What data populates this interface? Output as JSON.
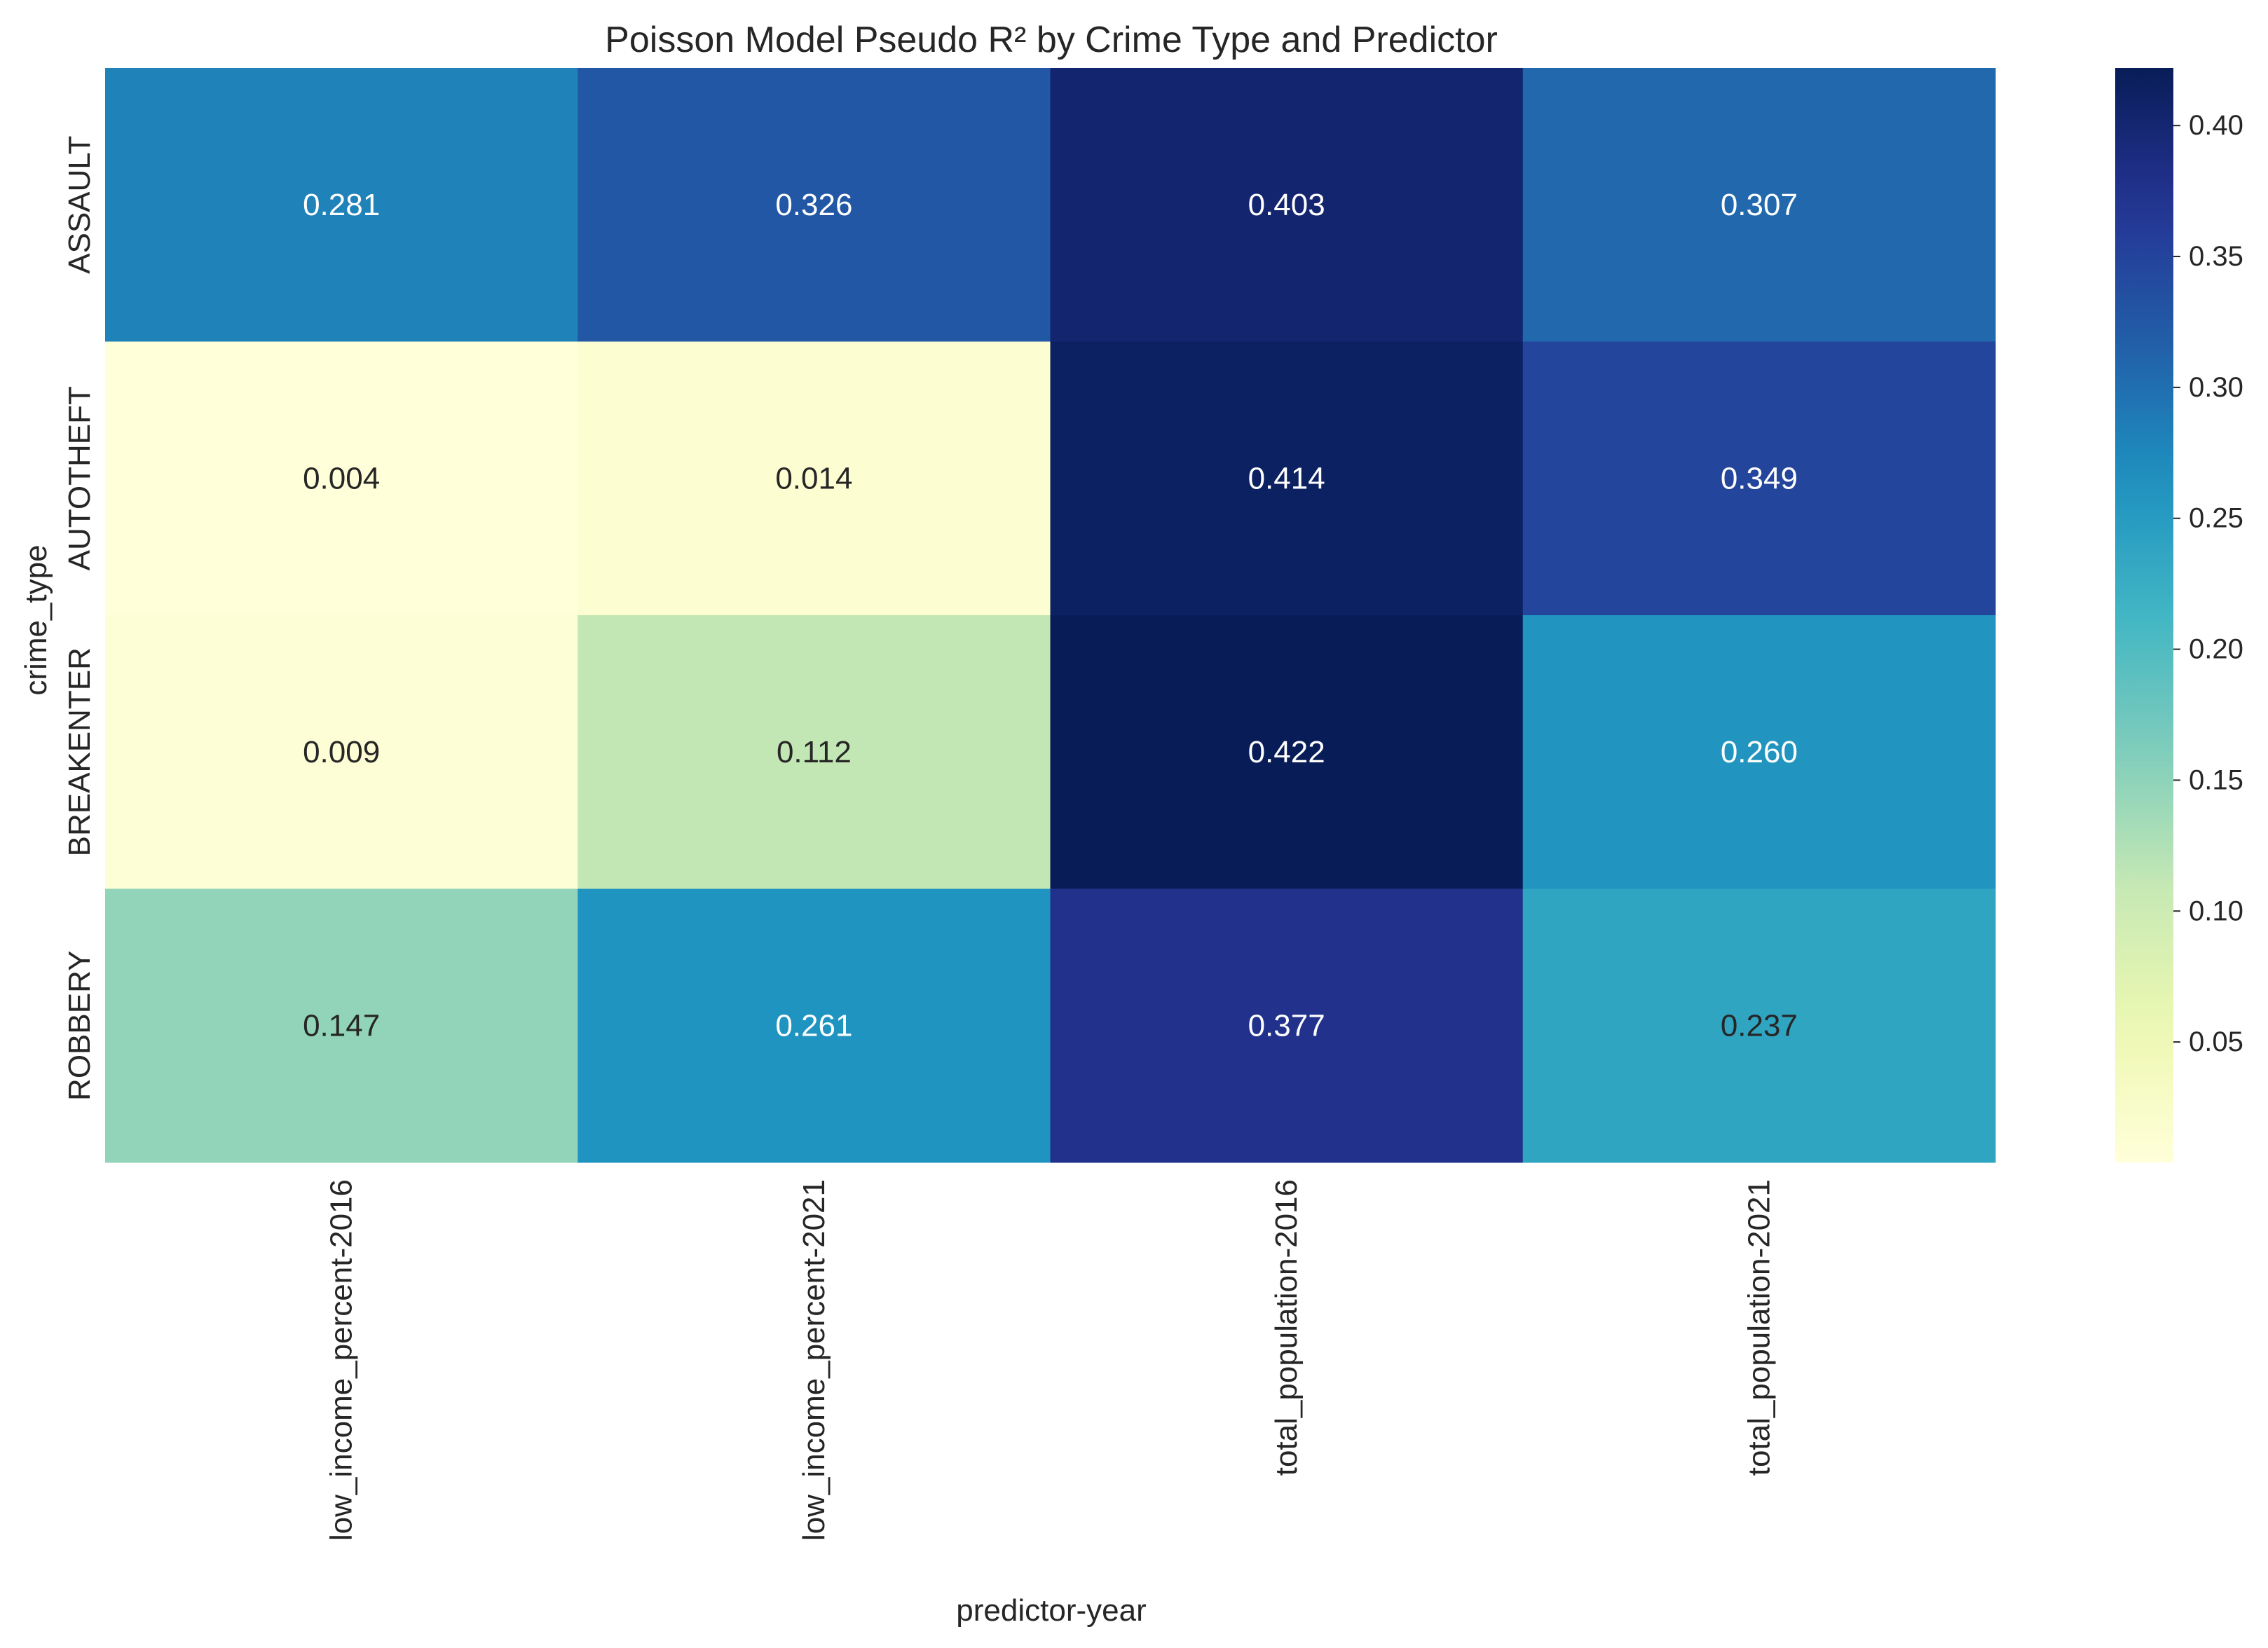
{
  "chart_data": {
    "type": "heatmap",
    "title": "Poisson Model Pseudo R² by Crime Type and Predictor",
    "xlabel": "predictor-year",
    "ylabel": "crime_type",
    "x_categories": [
      "low_income_percent-2016",
      "low_income_percent-2021",
      "total_population-2016",
      "total_population-2021"
    ],
    "y_categories": [
      "ASSAULT",
      "AUTOTHEFT",
      "BREAKENTER",
      "ROBBERY"
    ],
    "values": [
      [
        0.281,
        0.326,
        0.403,
        0.307
      ],
      [
        0.004,
        0.014,
        0.414,
        0.349
      ],
      [
        0.009,
        0.112,
        0.422,
        0.26
      ],
      [
        0.147,
        0.261,
        0.377,
        0.237
      ]
    ],
    "cell_labels": [
      [
        "0.281",
        "0.326",
        "0.403",
        "0.307"
      ],
      [
        "0.004",
        "0.014",
        "0.414",
        "0.349"
      ],
      [
        "0.009",
        "0.112",
        "0.422",
        "0.260"
      ],
      [
        "0.147",
        "0.261",
        "0.377",
        "0.237"
      ]
    ],
    "colormap": "YlGnBu",
    "colorbar": {
      "vmin": 0.004,
      "vmax": 0.422,
      "ticks": [
        0.05,
        0.1,
        0.15,
        0.2,
        0.25,
        0.3,
        0.35,
        0.4
      ],
      "tick_labels": [
        "0.05",
        "0.10",
        "0.15",
        "0.20",
        "0.25",
        "0.30",
        "0.35",
        "0.40"
      ]
    },
    "grid": false
  }
}
